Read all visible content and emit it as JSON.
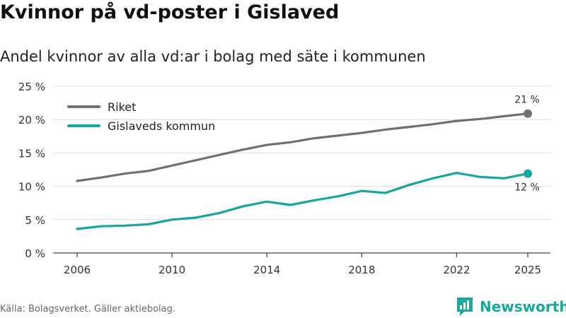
{
  "title": "Kvinnor på vd-poster i Gislaved",
  "subtitle": "Andel kvinnor av alla vd:ar i bolag med säte i kommunen",
  "source": "Källa: Bolagsverket. Gäller aktiebolag.",
  "brand": {
    "name": "Newsworthy",
    "icon": "newsworthy-logo-icon",
    "color": "#19a89a"
  },
  "chart_data": {
    "type": "line",
    "title": "Kvinnor på vd-poster i Gislaved",
    "xlabel": "",
    "ylabel": "",
    "x": [
      2006,
      2007,
      2008,
      2009,
      2010,
      2011,
      2012,
      2013,
      2014,
      2015,
      2016,
      2017,
      2018,
      2019,
      2020,
      2021,
      2022,
      2023,
      2024,
      2025
    ],
    "xticks": [
      2006,
      2010,
      2014,
      2018,
      2022,
      2025
    ],
    "xtick_labels": [
      "2006",
      "2010",
      "2014",
      "2018",
      "2022",
      "2025"
    ],
    "xlim": [
      2006,
      2025
    ],
    "yticks": [
      0,
      5,
      10,
      15,
      20,
      25
    ],
    "ytick_labels": [
      "0 %",
      "5 %",
      "10 %",
      "15 %",
      "20 %",
      "25 %"
    ],
    "ylim": [
      0,
      25
    ],
    "grid": true,
    "legend_position": "top-left",
    "series": [
      {
        "name": "Riket",
        "color": "#707070",
        "values": [
          10.8,
          11.3,
          11.9,
          12.3,
          13.1,
          13.9,
          14.7,
          15.5,
          16.2,
          16.6,
          17.2,
          17.6,
          18.0,
          18.5,
          18.9,
          19.3,
          19.8,
          20.1,
          20.5,
          20.9
        ],
        "end_label": "21 %"
      },
      {
        "name": "Gislaveds kommun",
        "color": "#17a69a",
        "values": [
          3.6,
          4.0,
          4.1,
          4.3,
          5.0,
          5.3,
          6.0,
          7.0,
          7.7,
          7.2,
          7.9,
          8.5,
          9.3,
          9.0,
          10.2,
          11.2,
          12.0,
          11.4,
          11.2,
          11.9
        ],
        "end_label": "12 %"
      }
    ]
  }
}
